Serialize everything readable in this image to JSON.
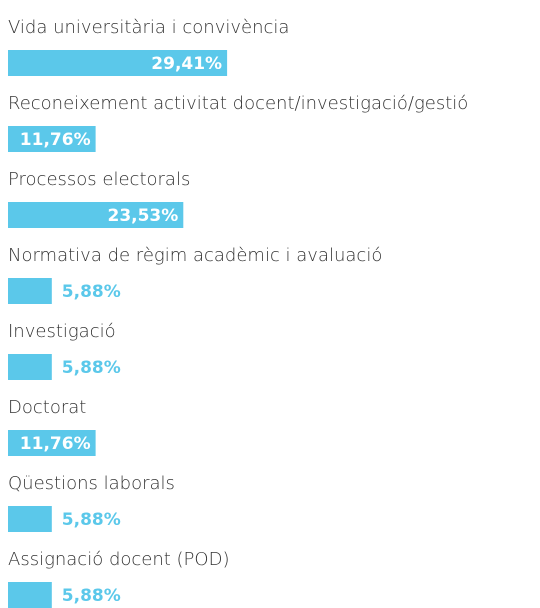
{
  "chart_data": {
    "type": "bar",
    "categories": [
      "Vida universitària i convivència",
      "Reconeixement activitat docent/investigació/gestió",
      "Processos electorals",
      "Normativa de règim acadèmic i avaluació",
      "Investigació",
      "Doctorat",
      "Qüestions laborals",
      "Assignació docent (POD)"
    ],
    "values": [
      29.41,
      11.76,
      23.53,
      5.88,
      5.88,
      11.76,
      5.88,
      5.88
    ],
    "value_labels": [
      "29,41%",
      "11,76%",
      "23,53%",
      "5,88%",
      "5,88%",
      "11,76%",
      "5,88%",
      "5,88%"
    ],
    "color": "#5bc8ea"
  }
}
